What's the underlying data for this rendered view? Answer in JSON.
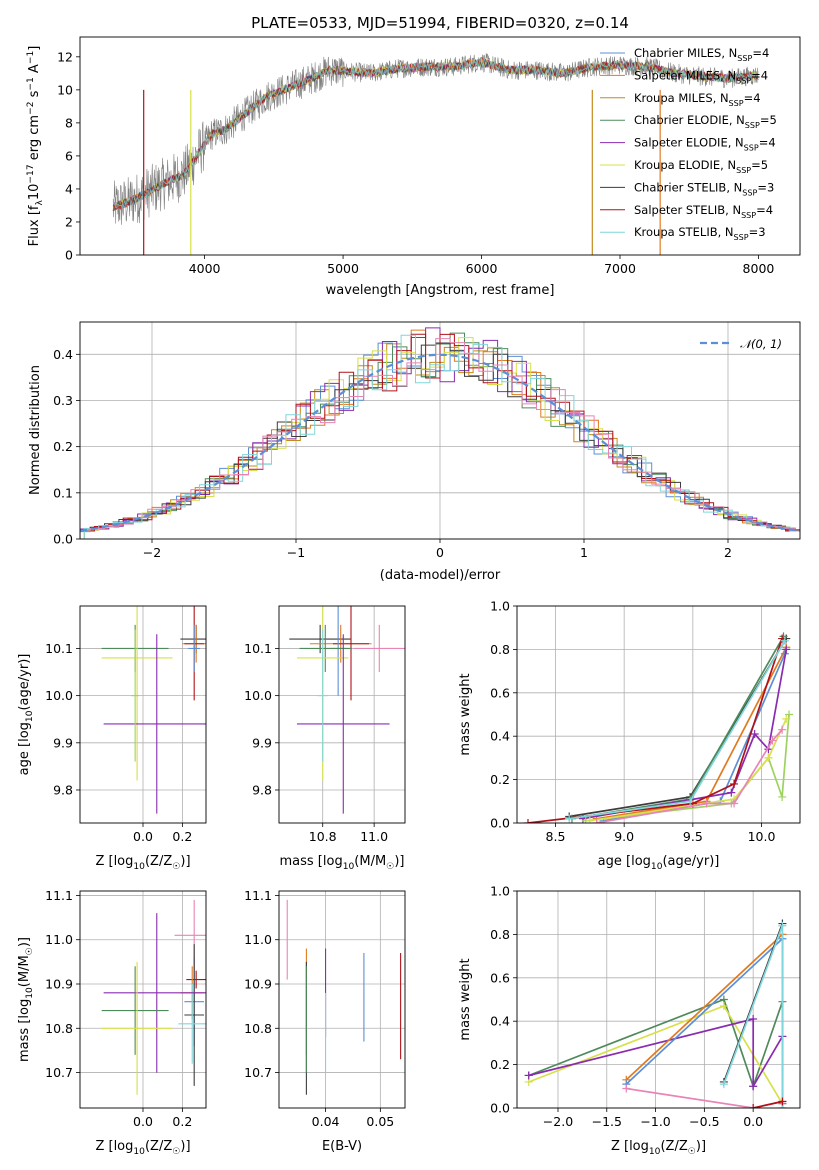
{
  "figure": {
    "title": "PLATE=0533, MJD=51994, FIBERID=0320, z=0.14"
  },
  "colors": {
    "chabrier_miles": "#5b8fd6",
    "salpeter_miles": "#e07a1f",
    "kroupa_miles": "#c48a1a",
    "chabrier_elodie": "#4f8a5b",
    "salpeter_elodie": "#8a2bb0",
    "kroupa_elodie": "#d8e04a",
    "chabrier_stelib": "#3c3c3c",
    "salpeter_stelib": "#b0121a",
    "kroupa_stelib": "#7fd6dc",
    "pink": "#e884b6",
    "green2": "#9ed25e",
    "data_gray": "#808080",
    "normal_curve": "#5b8fd6",
    "grid": "#b0b0b0"
  },
  "chart_data": [
    {
      "id": "spectrum",
      "type": "line",
      "title": "PLATE=0533, MJD=51994, FIBERID=0320, z=0.14",
      "xlabel": "wavelength [Angstrom, rest frame]",
      "ylabel": "Flux [f_λ 10^-17 erg cm^-2 s^-1 A^-1]",
      "xlim": [
        3100,
        8300
      ],
      "ylim": [
        0,
        13.2
      ],
      "xticks": [
        4000,
        5000,
        6000,
        7000,
        8000
      ],
      "yticks": [
        0,
        2,
        4,
        6,
        8,
        10,
        12
      ],
      "grid": false,
      "legend_position": "top-right",
      "legend": [
        {
          "label": "Chabrier MILES, N_SSP=4",
          "color": "#5b8fd6"
        },
        {
          "label": "Salpeter MILES, N_SSP=4",
          "color": "#e07a1f"
        },
        {
          "label": "Kroupa MILES, N_SSP=4",
          "color": "#c48a1a"
        },
        {
          "label": "Chabrier ELODIE, N_SSP=5",
          "color": "#4f8a5b"
        },
        {
          "label": "Salpeter ELODIE, N_SSP=4",
          "color": "#8a2bb0"
        },
        {
          "label": "Kroupa ELODIE, N_SSP=5",
          "color": "#d8e04a"
        },
        {
          "label": "Chabrier STELIB, N_SSP=3",
          "color": "#3c3c3c"
        },
        {
          "label": "Salpeter STELIB, N_SSP=4",
          "color": "#b0121a"
        },
        {
          "label": "Kroupa STELIB, N_SSP=3",
          "color": "#7fd6dc"
        }
      ],
      "model_curve_x": [
        3340,
        3450,
        3550,
        3700,
        3850,
        3950,
        4050,
        4150,
        4300,
        4450,
        4600,
        4750,
        4900,
        5050,
        5200,
        5400,
        5600,
        5800,
        6000,
        6200,
        6400,
        6600,
        6800,
        7000,
        7200,
        7400,
        7600,
        7800,
        8000
      ],
      "model_curve_y": [
        2.9,
        3.2,
        3.6,
        4.3,
        4.9,
        6.1,
        7.3,
        7.6,
        8.6,
        9.6,
        10.1,
        10.6,
        11.2,
        11.1,
        11.0,
        11.3,
        11.4,
        11.4,
        11.7,
        11.2,
        11.2,
        11.0,
        11.4,
        11.5,
        11.4,
        11.0,
        10.8,
        10.7,
        10.9
      ]
    },
    {
      "id": "residuals",
      "type": "line",
      "xlabel": "(data-model)/error",
      "ylabel": "Normed distribution",
      "xlim": [
        -2.5,
        2.5
      ],
      "ylim": [
        0,
        0.47
      ],
      "xticks": [
        -2,
        -1,
        0,
        1,
        2
      ],
      "yticks": [
        0.0,
        0.1,
        0.2,
        0.3,
        0.4
      ],
      "grid": true,
      "legend_position": "top-right",
      "legend": [
        {
          "label": "𝒩(0, 1)",
          "style": "dashed",
          "color": "#5b8fd6"
        }
      ],
      "bin_width": 0.1,
      "bins_start": -2.5
    },
    {
      "id": "age_vs_Z",
      "type": "scatter",
      "xlabel": "Z [log10(Z/Z☉)]",
      "ylabel": "age [log10(age/yr)]",
      "xlim": [
        -0.32,
        0.32
      ],
      "ylim": [
        9.73,
        10.19
      ],
      "xticks": [
        0.0,
        0.2
      ],
      "yticks": [
        9.8,
        9.9,
        10.0,
        10.1
      ],
      "grid": true,
      "points": [
        {
          "x": 0.27,
          "y": 10.12,
          "xerr": 0.08,
          "yerr": 0.03,
          "color": "#3c3c3c"
        },
        {
          "x": 0.27,
          "y": 10.11,
          "xerr": 0.07,
          "yerr": 0.04,
          "color": "#e07a1f"
        },
        {
          "x": 0.26,
          "y": 10.11,
          "xerr": 0.05,
          "yerr": 0.12,
          "color": "#b0121a"
        },
        {
          "x": 0.26,
          "y": 10.1,
          "xerr": 0.03,
          "yerr": 0.05,
          "color": "#5b8fd6"
        },
        {
          "x": -0.04,
          "y": 10.1,
          "xerr": 0.17,
          "yerr": 0.05,
          "color": "#4f8a5b"
        },
        {
          "x": -0.03,
          "y": 10.08,
          "xerr": 0.18,
          "yerr": 0.26,
          "color": "#d8e04a"
        },
        {
          "x": 0.07,
          "y": 9.94,
          "xerr": 0.27,
          "yerr": 0.19,
          "color": "#8a2bb0"
        },
        {
          "x": -0.04,
          "y": 10.0,
          "xerr": 0.02,
          "yerr": 0.14,
          "color": "#9ed25e"
        }
      ]
    },
    {
      "id": "age_vs_mass",
      "type": "scatter",
      "xlabel": "mass [log10(M/M☉)]",
      "ylabel": "",
      "xlim": [
        10.63,
        11.12
      ],
      "ylim": [
        9.73,
        10.19
      ],
      "xticks": [
        10.8,
        11.0
      ],
      "yticks": [
        9.8,
        9.9,
        10.0,
        10.1
      ],
      "grid": true,
      "points": [
        {
          "x": 10.79,
          "y": 10.12,
          "xerr": 0.12,
          "yerr": 0.03,
          "color": "#3c3c3c"
        },
        {
          "x": 10.87,
          "y": 10.11,
          "xerr": 0.12,
          "yerr": 0.04,
          "color": "#e07a1f"
        },
        {
          "x": 10.91,
          "y": 10.11,
          "xerr": 0.07,
          "yerr": 0.12,
          "color": "#b0121a"
        },
        {
          "x": 10.86,
          "y": 10.1,
          "xerr": 0.03,
          "yerr": 0.1,
          "color": "#5b8fd6"
        },
        {
          "x": 10.81,
          "y": 10.1,
          "xerr": 0.1,
          "yerr": 0.05,
          "color": "#4f8a5b"
        },
        {
          "x": 10.8,
          "y": 10.08,
          "xerr": 0.1,
          "yerr": 0.26,
          "color": "#d8e04a"
        },
        {
          "x": 10.88,
          "y": 9.94,
          "xerr": 0.18,
          "yerr": 0.19,
          "color": "#8a2bb0"
        },
        {
          "x": 11.02,
          "y": 10.1,
          "xerr": 0.1,
          "yerr": 0.05,
          "color": "#e884b6"
        },
        {
          "x": 10.8,
          "y": 10.0,
          "xerr": 0.02,
          "yerr": 0.14,
          "color": "#7fd6dc"
        }
      ]
    },
    {
      "id": "weight_vs_age",
      "type": "line",
      "xlabel": "age [log10(age/yr)]",
      "ylabel": "mass weight",
      "xlim": [
        8.22,
        10.28
      ],
      "ylim": [
        0,
        1.0
      ],
      "xticks": [
        8.5,
        9.0,
        9.5,
        10.0
      ],
      "yticks": [
        0.0,
        0.2,
        0.4,
        0.6,
        0.8,
        1.0
      ],
      "grid": true,
      "series": [
        {
          "x": [
            8.6,
            9.48,
            10.18
          ],
          "y": [
            0.03,
            0.12,
            0.85
          ],
          "color": "#3c3c3c"
        },
        {
          "x": [
            8.62,
            9.48,
            10.16
          ],
          "y": [
            0.02,
            0.11,
            0.86
          ],
          "color": "#4f8a5b"
        },
        {
          "x": [
            8.8,
            9.6,
            10.18
          ],
          "y": [
            0.02,
            0.1,
            0.81
          ],
          "color": "#e07a1f"
        },
        {
          "x": [
            8.85,
            9.7,
            10.17
          ],
          "y": [
            0.01,
            0.1,
            0.78
          ],
          "color": "#5b8fd6"
        },
        {
          "x": [
            8.7,
            9.78,
            9.95,
            10.05,
            10.18
          ],
          "y": [
            0.02,
            0.14,
            0.41,
            0.34,
            0.8
          ],
          "color": "#8a2bb0"
        },
        {
          "x": [
            8.72,
            9.78,
            10.05,
            10.15,
            10.2
          ],
          "y": [
            0.01,
            0.09,
            0.3,
            0.12,
            0.5
          ],
          "color": "#9ed25e"
        },
        {
          "x": [
            8.75,
            9.8,
            10.05,
            10.18
          ],
          "y": [
            0.01,
            0.11,
            0.3,
            0.48
          ],
          "color": "#d8e04a"
        },
        {
          "x": [
            8.3,
            9.5,
            9.8,
            10.15
          ],
          "y": [
            0.0,
            0.09,
            0.18,
            0.85
          ],
          "color": "#b0121a"
        },
        {
          "x": [
            8.8,
            9.6,
            9.8,
            10.08,
            10.15
          ],
          "y": [
            0.0,
            0.09,
            0.09,
            0.38,
            0.43
          ],
          "color": "#e884b6"
        },
        {
          "x": [
            8.6,
            9.48,
            10.17
          ],
          "y": [
            0.02,
            0.1,
            0.84
          ],
          "color": "#7fd6dc"
        }
      ]
    },
    {
      "id": "mass_vs_Z",
      "type": "scatter",
      "xlabel": "Z [log10(Z/Z☉)]",
      "ylabel": "mass [log10(M/M☉)]",
      "xlim": [
        -0.32,
        0.32
      ],
      "ylim": [
        10.62,
        11.11
      ],
      "xticks": [
        0.0,
        0.2
      ],
      "yticks": [
        10.7,
        10.8,
        10.9,
        11.0,
        11.1
      ],
      "grid": true,
      "points": [
        {
          "x": 0.27,
          "y": 10.91,
          "xerr": 0.05,
          "yerr": 0.02,
          "color": "#b0121a"
        },
        {
          "x": 0.25,
          "y": 10.88,
          "xerr": 0.06,
          "yerr": 0.06,
          "color": "#e07a1f"
        },
        {
          "x": 0.26,
          "y": 10.86,
          "xerr": 0.05,
          "yerr": 0.1,
          "color": "#5b8fd6"
        },
        {
          "x": 0.26,
          "y": 11.01,
          "xerr": 0.1,
          "yerr": 0.08,
          "color": "#e884b6"
        },
        {
          "x": 0.26,
          "y": 10.83,
          "xerr": 0.05,
          "yerr": 0.16,
          "color": "#3c3c3c"
        },
        {
          "x": 0.25,
          "y": 10.81,
          "xerr": 0.07,
          "yerr": 0.09,
          "color": "#7fd6dc"
        },
        {
          "x": 0.07,
          "y": 10.88,
          "xerr": 0.27,
          "yerr": 0.18,
          "color": "#8a2bb0"
        },
        {
          "x": -0.04,
          "y": 10.84,
          "xerr": 0.17,
          "yerr": 0.1,
          "color": "#4f8a5b"
        },
        {
          "x": -0.03,
          "y": 10.8,
          "xerr": 0.18,
          "yerr": 0.15,
          "color": "#d8e04a"
        }
      ]
    },
    {
      "id": "mass_vs_ebv",
      "type": "scatter",
      "xlabel": "E(B-V)",
      "ylabel": "",
      "xlim": [
        0.0315,
        0.0545
      ],
      "ylim": [
        10.62,
        11.11
      ],
      "xticks": [
        0.04,
        0.05
      ],
      "yticks": [
        10.7,
        10.8,
        10.9,
        11.0,
        11.1
      ],
      "grid": true,
      "points": [
        {
          "x": 0.033,
          "y": 11.0,
          "yerr": 0.09,
          "color": "#e884b6"
        },
        {
          "x": 0.0365,
          "y": 10.86,
          "yerr": 0.12,
          "color": "#e07a1f"
        },
        {
          "x": 0.0365,
          "y": 10.8,
          "yerr": 0.15,
          "color": "#3c3c3c"
        },
        {
          "x": 0.0365,
          "y": 10.82,
          "yerr": 0.12,
          "color": "#4f8a5b"
        },
        {
          "x": 0.04,
          "y": 10.88,
          "yerr": 0.1,
          "color": "#8a2bb0"
        },
        {
          "x": 0.04,
          "y": 10.79,
          "yerr": 0.09,
          "color": "#7fd6dc"
        },
        {
          "x": 0.047,
          "y": 10.87,
          "yerr": 0.1,
          "color": "#5b8fd6"
        },
        {
          "x": 0.0537,
          "y": 10.85,
          "yerr": 0.12,
          "color": "#b0121a"
        }
      ]
    },
    {
      "id": "weight_vs_Z",
      "type": "line",
      "xlabel": "Z [log10(Z/Z☉)]",
      "ylabel": "mass weight",
      "xlim": [
        -2.42,
        0.48
      ],
      "ylim": [
        0,
        1.0
      ],
      "xticks": [
        -2.0,
        -1.5,
        -1.0,
        -0.5,
        0.0
      ],
      "yticks": [
        0.0,
        0.2,
        0.4,
        0.6,
        0.8,
        1.0
      ],
      "grid": true,
      "series": [
        {
          "x": [
            -2.3,
            -0.3,
            0.0,
            0.3
          ],
          "y": [
            0.15,
            0.5,
            0.1,
            0.49
          ],
          "color": "#4f8a5b"
        },
        {
          "x": [
            -2.3,
            -0.3,
            0.3
          ],
          "y": [
            0.12,
            0.47,
            0.02
          ],
          "color": "#d8e04a"
        },
        {
          "x": [
            -2.3,
            0.0,
            0.0,
            0.3
          ],
          "y": [
            0.15,
            0.41,
            0.1,
            0.33
          ],
          "color": "#8a2bb0"
        },
        {
          "x": [
            -1.3,
            0.3,
            0.3
          ],
          "y": [
            0.13,
            0.8,
            0.0
          ],
          "color": "#e07a1f"
        },
        {
          "x": [
            -1.3,
            0.3,
            0.3
          ],
          "y": [
            0.11,
            0.78,
            0.02
          ],
          "color": "#5b8fd6"
        },
        {
          "x": [
            -0.3,
            0.3
          ],
          "y": [
            0.12,
            0.85
          ],
          "color": "#3c3c3c"
        },
        {
          "x": [
            -0.3,
            0.3,
            0.3
          ],
          "y": [
            0.11,
            0.84,
            0.0
          ],
          "color": "#7fd6dc"
        },
        {
          "x": [
            -1.3,
            0.0,
            0.3
          ],
          "y": [
            0.09,
            0.0,
            0.03
          ],
          "color": "#e884b6"
        },
        {
          "x": [
            0.0,
            0.3
          ],
          "y": [
            0.0,
            0.03
          ],
          "color": "#b0121a"
        }
      ]
    }
  ]
}
